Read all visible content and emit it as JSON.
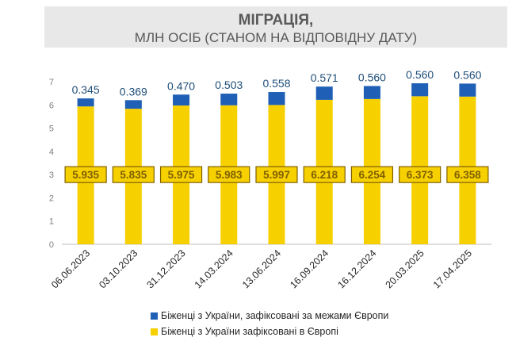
{
  "title": "МІГРАЦІЯ,",
  "subtitle": "МЛН ОСІБ (СТАНОМ НА ВІДПОВІДНУ ДАТУ)",
  "colors": {
    "europe": "#f7d000",
    "outside": "#1f5fb5",
    "outside_label": "#1f4e79",
    "europe_label_border": "#7f6000",
    "europe_label_text": "#7f6000",
    "axis": "#bfbfbf",
    "tick_text": "#7f7f7f"
  },
  "chart_data": {
    "type": "bar",
    "stacked": true,
    "categories": [
      "06.06.2023",
      "03.10.2023",
      "31.12.2023",
      "14.03.2024",
      "13.06.2024",
      "16.09.2024",
      "16.12.2024",
      "20.03.2025",
      "17.04.2025"
    ],
    "series": [
      {
        "name": "Біженці з України зафіксовані в Європі",
        "values": [
          5.935,
          5.835,
          5.975,
          5.983,
          5.997,
          6.218,
          6.254,
          6.373,
          6.358
        ],
        "labels": [
          "5.935",
          "5.835",
          "5.975",
          "5.983",
          "5.997",
          "6.218",
          "6.254",
          "6.373",
          "6.358"
        ]
      },
      {
        "name": "Біженці з України, зафіксовані за межами Європи",
        "values": [
          0.345,
          0.369,
          0.47,
          0.503,
          0.558,
          0.571,
          0.56,
          0.56,
          0.56
        ],
        "labels": [
          "0.345",
          "0.369",
          "0.470",
          "0.503",
          "0.558",
          "0.571",
          "0.560",
          "0.560",
          "0.560"
        ]
      }
    ],
    "yticks": [
      "0",
      "1",
      "2",
      "3",
      "4",
      "5",
      "6",
      "7"
    ],
    "ylim": [
      0,
      7
    ],
    "grid": false,
    "legend_position": "bottom"
  }
}
